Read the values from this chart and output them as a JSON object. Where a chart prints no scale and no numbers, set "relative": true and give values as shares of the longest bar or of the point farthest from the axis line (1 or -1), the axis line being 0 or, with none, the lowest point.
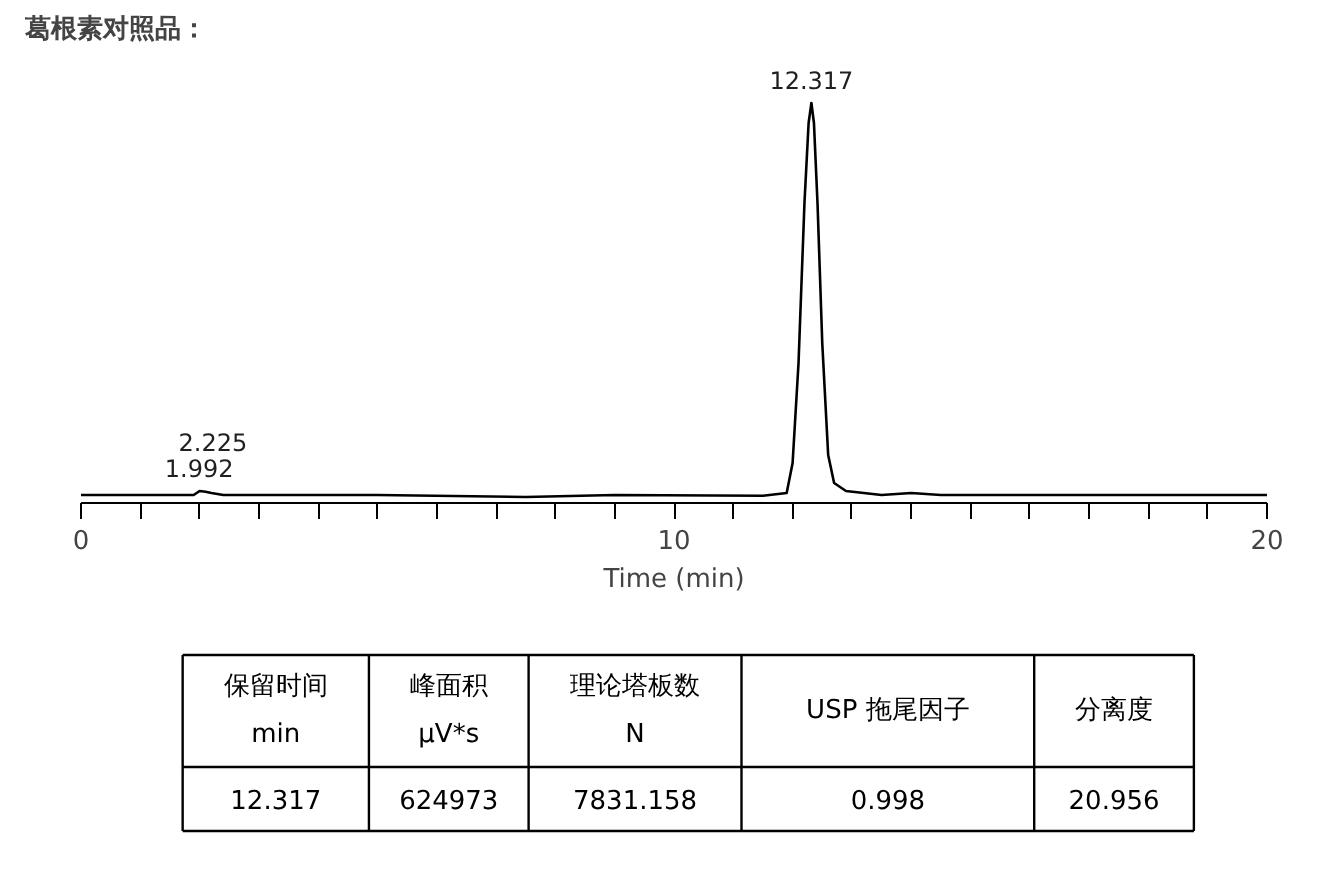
{
  "chart_data": [
    {
      "type": "line",
      "title": "葛根素对照品：",
      "xlabel": "Time (min)",
      "relative": true,
      "color": "#000000",
      "x": [
        0,
        1.0,
        1.9,
        2.0,
        2.1,
        2.2,
        2.4,
        5.0,
        7.5,
        9.0,
        11.5,
        11.9,
        12.0,
        12.1,
        12.2,
        12.27,
        12.317,
        12.36,
        12.42,
        12.5,
        12.6,
        12.7,
        12.9,
        13.5,
        14.0,
        14.5,
        17.0,
        20
      ],
      "values": [
        0.02,
        0.02,
        0.02,
        0.03,
        0.028,
        0.025,
        0.02,
        0.02,
        0.015,
        0.02,
        0.018,
        0.025,
        0.1,
        0.35,
        0.75,
        0.95,
        1,
        0.95,
        0.75,
        0.4,
        0.12,
        0.05,
        0.03,
        0.02,
        0.025,
        0.02,
        0.02,
        0.02
      ],
      "xlim": [
        0,
        20
      ],
      "xticks": [
        0,
        {
          "value": 1,
          "label": null
        },
        {
          "value": 2,
          "label": null
        },
        {
          "value": 3,
          "label": null
        },
        {
          "value": 4,
          "label": null
        },
        {
          "value": 5,
          "label": null
        },
        {
          "value": 6,
          "label": null
        },
        {
          "value": 7,
          "label": null
        },
        {
          "value": 8,
          "label": null
        },
        {
          "value": 9,
          "label": null
        },
        10,
        {
          "value": 11,
          "label": null
        },
        {
          "value": 12,
          "label": null
        },
        {
          "value": 13,
          "label": null
        },
        {
          "value": 14,
          "label": null
        },
        {
          "value": 15,
          "label": null
        },
        {
          "value": 16,
          "label": null
        },
        {
          "value": 17,
          "label": null
        },
        {
          "value": 18,
          "label": null
        },
        {
          "value": 19,
          "label": null
        },
        20
      ],
      "annotations": [
        {
          "text": "12.317",
          "x": 12.317,
          "y": 1
        },
        {
          "text": "1.992",
          "x": 1.992,
          "y": 0.03
        },
        {
          "text": "2.225",
          "x": 2.225,
          "y": 0.025
        }
      ],
      "grid": false
    },
    {
      "type": "other",
      "data_labels": true,
      "categories": [
        "保留时间\nmin",
        "峰面积\nμV*s",
        "理论塔板数\nN",
        "USP 拖尾因子",
        "分离度"
      ],
      "values": [
        12.317,
        624973,
        7831.158,
        0.998,
        20.956
      ]
    }
  ]
}
